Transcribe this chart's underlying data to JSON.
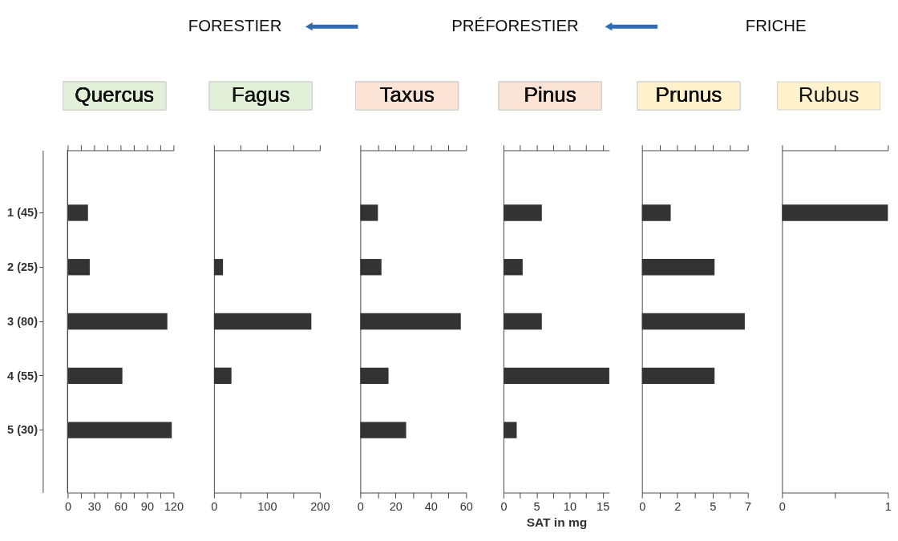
{
  "chart_data": [
    {
      "type": "bar",
      "orientation": "horizontal",
      "title": "Quercus",
      "annotations": [
        "FORESTIER",
        "PRÉFORESTIER",
        "FRICHE"
      ],
      "categories": [
        "1 (45)",
        "2 (25)",
        "3 (80)",
        "4 (55)",
        "5 (30)"
      ],
      "values": [
        23,
        25,
        113,
        62,
        118
      ],
      "color": "#333333",
      "xlim": [
        0,
        120
      ],
      "xticks": [
        0,
        {
          "value": 15,
          "label": null
        },
        30,
        {
          "value": 45,
          "label": null
        },
        60,
        {
          "value": 75,
          "label": null
        },
        90,
        {
          "value": 105,
          "label": null
        },
        120
      ],
      "grid": false
    },
    {
      "type": "bar",
      "orientation": "horizontal",
      "title": "Fagus",
      "values": [
        null,
        17,
        184,
        33,
        null
      ],
      "color": "#333333",
      "xlim": [
        0,
        200
      ],
      "xticks": [
        0,
        {
          "value": 50,
          "label": null
        },
        100,
        {
          "value": 150,
          "label": null
        },
        200
      ],
      "tick_labels": "x",
      "grid": false
    },
    {
      "type": "bar",
      "orientation": "horizontal",
      "title": "Taxus",
      "values": [
        10,
        12,
        57,
        16,
        26
      ],
      "color": "#333333",
      "xlim": [
        0,
        60
      ],
      "xticks": [
        0,
        {
          "value": 10,
          "label": null
        },
        20,
        {
          "value": 30,
          "label": null
        },
        40,
        {
          "value": 50,
          "label": null
        },
        60
      ],
      "tick_labels": "x",
      "grid": false
    },
    {
      "type": "bar",
      "orientation": "horizontal",
      "title": "Pinus",
      "xlabel": "SAT in mg",
      "values": [
        5.8,
        2.9,
        5.8,
        16,
        2.0
      ],
      "color": "#333333",
      "xlim": [
        0,
        16
      ],
      "xticks": [
        0,
        {
          "value": 2.5,
          "label": null
        },
        5,
        {
          "value": 7.5,
          "label": null
        },
        10,
        {
          "value": 12.5,
          "label": null
        },
        15
      ],
      "tick_labels": "x",
      "grid": false
    },
    {
      "type": "bar",
      "orientation": "horizontal",
      "title": "Prunus",
      "values": [
        1.9,
        4.8,
        6.8,
        4.8,
        null
      ],
      "color": "#333333",
      "xlim": [
        0,
        7
      ],
      "xticks": [
        0,
        {
          "value": 1.1667,
          "label": null
        },
        {
          "value": 2.3333,
          "label": "2"
        },
        {
          "value": 3.5,
          "label": null
        },
        {
          "value": 4.6667,
          "label": "5"
        },
        {
          "value": 5.8333,
          "label": null
        },
        7
      ],
      "tick_labels": "x",
      "grid": false
    },
    {
      "type": "bar",
      "orientation": "horizontal",
      "title": "Rubus",
      "values": [
        1.0,
        null,
        null,
        null,
        null
      ],
      "color": "#333333",
      "xlim": [
        0,
        1
      ],
      "xticks": [
        0,
        {
          "value": 0.5,
          "label": null
        },
        1
      ],
      "tick_labels": "x",
      "grid": false
    }
  ]
}
